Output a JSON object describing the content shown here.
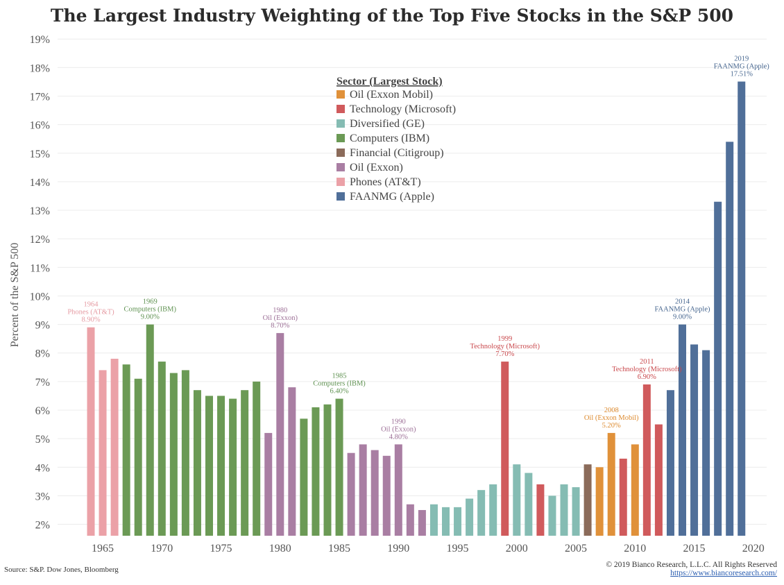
{
  "chart_data": {
    "type": "bar",
    "title": "The Largest Industry Weighting of the Top Five Stocks in the S&P 500",
    "ylabel": "Percent of the S&P 500",
    "xlabel": "",
    "ylim": [
      1.6,
      19.2
    ],
    "yticks": [
      "2%",
      "3%",
      "4%",
      "5%",
      "6%",
      "7%",
      "8%",
      "9%",
      "10%",
      "11%",
      "12%",
      "13%",
      "14%",
      "15%",
      "16%",
      "17%",
      "18%",
      "19%"
    ],
    "xticks": [
      "1965",
      "1970",
      "1975",
      "1980",
      "1985",
      "1990",
      "1995",
      "2000",
      "2005",
      "2010",
      "2015",
      "2020"
    ],
    "grid": true,
    "legend": {
      "title": "Sector (Largest Stock)",
      "placement": "top-center",
      "entries": [
        {
          "label": "Oil (Exxon Mobil)",
          "color": "#e0913a"
        },
        {
          "label": "Technology (Microsoft)",
          "color": "#d05a5c"
        },
        {
          "label": "Diversified (GE)",
          "color": "#85bcb3"
        },
        {
          "label": "Computers (IBM)",
          "color": "#6b9a55"
        },
        {
          "label": "Financial (Citigroup)",
          "color": "#8b6b5a"
        },
        {
          "label": "Oil (Exxon)",
          "color": "#a97ea3"
        },
        {
          "label": "Phones (AT&T)",
          "color": "#eba1a7"
        },
        {
          "label": "FAANMG (Apple)",
          "color": "#506f99"
        }
      ]
    },
    "bars": [
      {
        "year": 1964,
        "value": 8.9,
        "sector": "Phones (AT&T)"
      },
      {
        "year": 1965,
        "value": 7.4,
        "sector": "Phones (AT&T)"
      },
      {
        "year": 1966,
        "value": 7.8,
        "sector": "Phones (AT&T)"
      },
      {
        "year": 1967,
        "value": 7.6,
        "sector": "Computers (IBM)"
      },
      {
        "year": 1968,
        "value": 7.1,
        "sector": "Computers (IBM)"
      },
      {
        "year": 1969,
        "value": 9.0,
        "sector": "Computers (IBM)"
      },
      {
        "year": 1970,
        "value": 7.7,
        "sector": "Computers (IBM)"
      },
      {
        "year": 1971,
        "value": 7.3,
        "sector": "Computers (IBM)"
      },
      {
        "year": 1972,
        "value": 7.4,
        "sector": "Computers (IBM)"
      },
      {
        "year": 1973,
        "value": 6.7,
        "sector": "Computers (IBM)"
      },
      {
        "year": 1974,
        "value": 6.5,
        "sector": "Computers (IBM)"
      },
      {
        "year": 1975,
        "value": 6.5,
        "sector": "Computers (IBM)"
      },
      {
        "year": 1976,
        "value": 6.4,
        "sector": "Computers (IBM)"
      },
      {
        "year": 1977,
        "value": 6.7,
        "sector": "Computers (IBM)"
      },
      {
        "year": 1978,
        "value": 7.0,
        "sector": "Computers (IBM)"
      },
      {
        "year": 1979,
        "value": 5.2,
        "sector": "Oil (Exxon)"
      },
      {
        "year": 1980,
        "value": 8.7,
        "sector": "Oil (Exxon)"
      },
      {
        "year": 1981,
        "value": 6.8,
        "sector": "Oil (Exxon)"
      },
      {
        "year": 1982,
        "value": 5.7,
        "sector": "Computers (IBM)"
      },
      {
        "year": 1983,
        "value": 6.1,
        "sector": "Computers (IBM)"
      },
      {
        "year": 1984,
        "value": 6.2,
        "sector": "Computers (IBM)"
      },
      {
        "year": 1985,
        "value": 6.4,
        "sector": "Computers (IBM)"
      },
      {
        "year": 1986,
        "value": 4.5,
        "sector": "Oil (Exxon)"
      },
      {
        "year": 1987,
        "value": 4.8,
        "sector": "Oil (Exxon)"
      },
      {
        "year": 1988,
        "value": 4.6,
        "sector": "Oil (Exxon)"
      },
      {
        "year": 1989,
        "value": 4.4,
        "sector": "Oil (Exxon)"
      },
      {
        "year": 1990,
        "value": 4.8,
        "sector": "Oil (Exxon)"
      },
      {
        "year": 1991,
        "value": 2.7,
        "sector": "Oil (Exxon)"
      },
      {
        "year": 1992,
        "value": 2.5,
        "sector": "Oil (Exxon)"
      },
      {
        "year": 1993,
        "value": 2.7,
        "sector": "Diversified (GE)"
      },
      {
        "year": 1994,
        "value": 2.6,
        "sector": "Diversified (GE)"
      },
      {
        "year": 1995,
        "value": 2.6,
        "sector": "Diversified (GE)"
      },
      {
        "year": 1996,
        "value": 2.9,
        "sector": "Diversified (GE)"
      },
      {
        "year": 1997,
        "value": 3.2,
        "sector": "Diversified (GE)"
      },
      {
        "year": 1998,
        "value": 3.4,
        "sector": "Diversified (GE)"
      },
      {
        "year": 1999,
        "value": 7.7,
        "sector": "Technology (Microsoft)"
      },
      {
        "year": 2000,
        "value": 4.1,
        "sector": "Diversified (GE)"
      },
      {
        "year": 2001,
        "value": 3.8,
        "sector": "Diversified (GE)"
      },
      {
        "year": 2002,
        "value": 3.4,
        "sector": "Technology (Microsoft)"
      },
      {
        "year": 2003,
        "value": 3.0,
        "sector": "Diversified (GE)"
      },
      {
        "year": 2004,
        "value": 3.4,
        "sector": "Diversified (GE)"
      },
      {
        "year": 2005,
        "value": 3.3,
        "sector": "Diversified (GE)"
      },
      {
        "year": 2006,
        "value": 4.1,
        "sector": "Financial (Citigroup)"
      },
      {
        "year": 2007,
        "value": 4.0,
        "sector": "Oil (Exxon Mobil)"
      },
      {
        "year": 2008,
        "value": 5.2,
        "sector": "Oil (Exxon Mobil)"
      },
      {
        "year": 2009,
        "value": 4.3,
        "sector": "Technology (Microsoft)"
      },
      {
        "year": 2010,
        "value": 4.8,
        "sector": "Oil (Exxon Mobil)"
      },
      {
        "year": 2011,
        "value": 6.9,
        "sector": "Technology (Microsoft)"
      },
      {
        "year": 2012,
        "value": 5.5,
        "sector": "Technology (Microsoft)"
      },
      {
        "year": 2013,
        "value": 6.7,
        "sector": "FAANMG (Apple)"
      },
      {
        "year": 2014,
        "value": 9.0,
        "sector": "FAANMG (Apple)"
      },
      {
        "year": 2015,
        "value": 8.3,
        "sector": "FAANMG (Apple)"
      },
      {
        "year": 2016,
        "value": 8.1,
        "sector": "FAANMG (Apple)"
      },
      {
        "year": 2017,
        "value": 13.3,
        "sector": "FAANMG (Apple)"
      },
      {
        "year": 2018,
        "value": 15.4,
        "sector": "FAANMG (Apple)"
      },
      {
        "year": 2019,
        "value": 17.51,
        "sector": "FAANMG (Apple)"
      }
    ],
    "annotations": [
      {
        "year": 1964,
        "value": 8.9,
        "lines": [
          "1964",
          "Phones (AT&T)",
          "8.90%"
        ],
        "color": "#e59aa2"
      },
      {
        "year": 1969,
        "value": 9.0,
        "lines": [
          "1969",
          "Computers (IBM)",
          "9.00%"
        ],
        "color": "#5e9150"
      },
      {
        "year": 1980,
        "value": 8.7,
        "lines": [
          "1980",
          "Oil (Exxon)",
          "8.70%"
        ],
        "color": "#9d7097"
      },
      {
        "year": 1985,
        "value": 6.4,
        "lines": [
          "1985",
          "Computers (IBM)",
          "6.40%"
        ],
        "color": "#5e9150"
      },
      {
        "year": 1990,
        "value": 4.8,
        "lines": [
          "1990",
          "Oil (Exxon)",
          "4.80%"
        ],
        "color": "#9d7097"
      },
      {
        "year": 1999,
        "value": 7.7,
        "lines": [
          "1999",
          "Technology (Microsoft)",
          "7.70%"
        ],
        "color": "#c9484c"
      },
      {
        "year": 2008,
        "value": 5.2,
        "lines": [
          "2008",
          "Oil (Exxon Mobil)",
          "5.20%"
        ],
        "color": "#dd8a2e"
      },
      {
        "year": 2011,
        "value": 6.9,
        "lines": [
          "2011",
          "Technology (Microsoft)",
          "6.90%"
        ],
        "color": "#c9484c"
      },
      {
        "year": 2014,
        "value": 9.0,
        "lines": [
          "2014",
          "FAANMG (Apple)",
          "9.00%"
        ],
        "color": "#46668f"
      },
      {
        "year": 2019,
        "value": 17.51,
        "lines": [
          "2019",
          "FAANMG (Apple)",
          "17.51%"
        ],
        "color": "#46668f"
      }
    ]
  },
  "footer": {
    "source": "Source: S&P. Dow Jones, Bloomberg",
    "copyright": "© 2019 Bianco Research, L.L.C. All Rights Reserved",
    "url": "https://www.biancoresearch.com/"
  }
}
